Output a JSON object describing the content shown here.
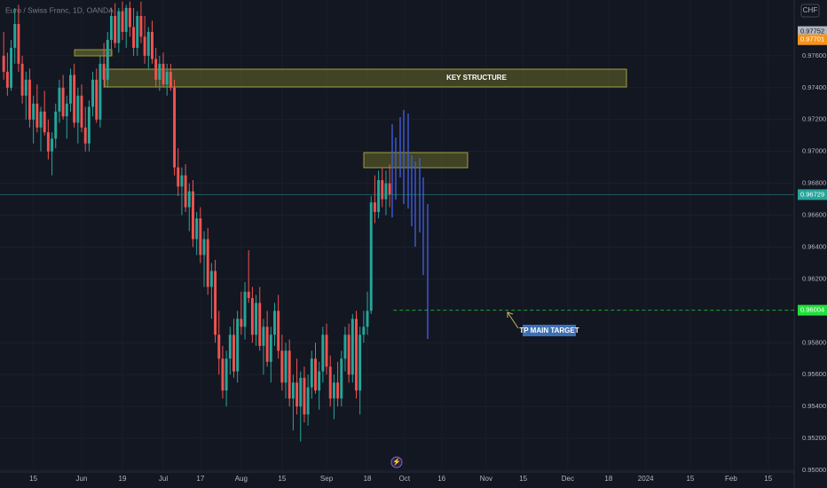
{
  "chart_data": {
    "type": "candlestick",
    "title": "Euro / Swiss Franc, 1D, OANDA",
    "currency": "CHF",
    "up_color": "#26a69a",
    "down_color": "#ef5350",
    "xlim": [
      -1,
      213
    ],
    "xticks": [
      {
        "value": 8,
        "label": "15"
      },
      {
        "value": 21,
        "label": "Jun"
      },
      {
        "value": 32,
        "label": "19"
      },
      {
        "value": 43,
        "label": "Jul"
      },
      {
        "value": 53,
        "label": "17"
      },
      {
        "value": 64,
        "label": "Aug"
      },
      {
        "value": 75,
        "label": "15"
      },
      {
        "value": 87,
        "label": "Sep"
      },
      {
        "value": 98,
        "label": "18"
      },
      {
        "value": 108,
        "label": "Oct"
      },
      {
        "value": 118,
        "label": "16"
      },
      {
        "value": 130,
        "label": "Nov"
      },
      {
        "value": 140,
        "label": "15"
      },
      {
        "value": 152,
        "label": "Dec"
      },
      {
        "value": 163,
        "label": "18"
      },
      {
        "value": 173,
        "label": "2024"
      },
      {
        "value": 185,
        "label": "15"
      },
      {
        "value": 196,
        "label": "Feb"
      },
      {
        "value": 206,
        "label": "15"
      }
    ],
    "ylim": [
      0.95,
      0.9795
    ],
    "yticks": [
      {
        "value": 0.976,
        "label": "0.97600"
      },
      {
        "value": 0.974,
        "label": "0.97400"
      },
      {
        "value": 0.972,
        "label": "0.97200"
      },
      {
        "value": 0.97,
        "label": "0.97000"
      },
      {
        "value": 0.968,
        "label": "0.96800"
      },
      {
        "value": 0.966,
        "label": "0.96600"
      },
      {
        "value": 0.964,
        "label": "0.96400"
      },
      {
        "value": 0.962,
        "label": "0.96200"
      },
      {
        "value": 0.958,
        "label": "0.95800"
      },
      {
        "value": 0.956,
        "label": "0.95600"
      },
      {
        "value": 0.954,
        "label": "0.95400"
      },
      {
        "value": 0.952,
        "label": "0.95200"
      },
      {
        "value": 0.95,
        "label": "0.95000"
      }
    ],
    "price_labels": [
      {
        "value": 0.97752,
        "label": "0.97752",
        "color": "#b2b5be"
      },
      {
        "value": 0.97701,
        "label": "0.97701",
        "color": "#f7931a"
      },
      {
        "value": 0.96729,
        "label": "0.96729",
        "color": "#26a69a"
      },
      {
        "value": 0.96004,
        "label": "0.96004",
        "color": "#22e03a"
      }
    ],
    "annotations": [
      "KEY STRUCTURE",
      "TP MAIN TARGET"
    ],
    "candles": [
      [
        0.976,
        0.9775,
        0.9745,
        0.975
      ],
      [
        0.975,
        0.9762,
        0.9735,
        0.974
      ],
      [
        0.974,
        0.977,
        0.9738,
        0.9765
      ],
      [
        0.9765,
        0.979,
        0.9755,
        0.978
      ],
      [
        0.978,
        0.9792,
        0.975,
        0.9755
      ],
      [
        0.9755,
        0.976,
        0.973,
        0.9735
      ],
      [
        0.9735,
        0.975,
        0.972,
        0.9745
      ],
      [
        0.9745,
        0.9752,
        0.9715,
        0.972
      ],
      [
        0.972,
        0.9735,
        0.9705,
        0.973
      ],
      [
        0.973,
        0.9742,
        0.9712,
        0.9715
      ],
      [
        0.9715,
        0.9728,
        0.97,
        0.9725
      ],
      [
        0.9725,
        0.9738,
        0.971,
        0.9712
      ],
      [
        0.9712,
        0.972,
        0.9695,
        0.97
      ],
      [
        0.97,
        0.9712,
        0.9685,
        0.9708
      ],
      [
        0.9708,
        0.973,
        0.9702,
        0.9725
      ],
      [
        0.9725,
        0.9745,
        0.9718,
        0.974
      ],
      [
        0.974,
        0.9748,
        0.972,
        0.9722
      ],
      [
        0.9722,
        0.9735,
        0.9708,
        0.973
      ],
      [
        0.973,
        0.9752,
        0.9725,
        0.9748
      ],
      [
        0.9748,
        0.9755,
        0.9715,
        0.9718
      ],
      [
        0.9718,
        0.974,
        0.9705,
        0.9735
      ],
      [
        0.9735,
        0.9742,
        0.9712,
        0.9715
      ],
      [
        0.9715,
        0.9728,
        0.97,
        0.9705
      ],
      [
        0.9705,
        0.9732,
        0.97,
        0.9728
      ],
      [
        0.9728,
        0.975,
        0.9722,
        0.9745
      ],
      [
        0.9745,
        0.9752,
        0.9718,
        0.972
      ],
      [
        0.972,
        0.976,
        0.9715,
        0.9755
      ],
      [
        0.9755,
        0.9768,
        0.974,
        0.9745
      ],
      [
        0.9745,
        0.9775,
        0.974,
        0.977
      ],
      [
        0.977,
        0.979,
        0.976,
        0.9785
      ],
      [
        0.9785,
        0.9793,
        0.9765,
        0.9768
      ],
      [
        0.9768,
        0.979,
        0.9762,
        0.9788
      ],
      [
        0.9788,
        0.9794,
        0.977,
        0.9775
      ],
      [
        0.9775,
        0.9792,
        0.9765,
        0.979
      ],
      [
        0.979,
        0.9794,
        0.9772,
        0.9778
      ],
      [
        0.9778,
        0.979,
        0.976,
        0.9765
      ],
      [
        0.9765,
        0.9788,
        0.976,
        0.9785
      ],
      [
        0.9785,
        0.9794,
        0.9768,
        0.9772
      ],
      [
        0.9772,
        0.9785,
        0.9755,
        0.976
      ],
      [
        0.976,
        0.9778,
        0.9752,
        0.9775
      ],
      [
        0.9775,
        0.9782,
        0.9755,
        0.9758
      ],
      [
        0.9758,
        0.9765,
        0.974,
        0.9745
      ],
      [
        0.9745,
        0.976,
        0.9738,
        0.9755
      ],
      [
        0.9755,
        0.9762,
        0.974,
        0.9742
      ],
      [
        0.9742,
        0.9755,
        0.9735,
        0.975
      ],
      [
        0.975,
        0.9755,
        0.9738,
        0.974
      ],
      [
        0.974,
        0.9745,
        0.9685,
        0.969
      ],
      [
        0.969,
        0.9702,
        0.9672,
        0.9678
      ],
      [
        0.9678,
        0.969,
        0.966,
        0.9685
      ],
      [
        0.9685,
        0.9692,
        0.9662,
        0.9665
      ],
      [
        0.9665,
        0.968,
        0.965,
        0.9675
      ],
      [
        0.9675,
        0.9682,
        0.964,
        0.9645
      ],
      [
        0.9645,
        0.9662,
        0.9635,
        0.9658
      ],
      [
        0.9658,
        0.9665,
        0.963,
        0.9635
      ],
      [
        0.9635,
        0.965,
        0.9615,
        0.9645
      ],
      [
        0.9645,
        0.9652,
        0.961,
        0.9615
      ],
      [
        0.9615,
        0.963,
        0.9595,
        0.9625
      ],
      [
        0.9625,
        0.9632,
        0.958,
        0.9585
      ],
      [
        0.9585,
        0.96,
        0.956,
        0.957
      ],
      [
        0.957,
        0.9578,
        0.9545,
        0.955
      ],
      [
        0.955,
        0.9575,
        0.954,
        0.957
      ],
      [
        0.957,
        0.959,
        0.956,
        0.9585
      ],
      [
        0.9585,
        0.9595,
        0.9558,
        0.9562
      ],
      [
        0.9562,
        0.96,
        0.9555,
        0.9595
      ],
      [
        0.9595,
        0.9612,
        0.9585,
        0.959
      ],
      [
        0.959,
        0.9618,
        0.9582,
        0.9612
      ],
      [
        0.9612,
        0.9638,
        0.9605,
        0.9608
      ],
      [
        0.9608,
        0.9615,
        0.958,
        0.9585
      ],
      [
        0.9585,
        0.961,
        0.9578,
        0.9605
      ],
      [
        0.9605,
        0.9615,
        0.9575,
        0.9578
      ],
      [
        0.9578,
        0.9595,
        0.956,
        0.959
      ],
      [
        0.959,
        0.96,
        0.9565,
        0.9568
      ],
      [
        0.9568,
        0.959,
        0.9555,
        0.9585
      ],
      [
        0.9585,
        0.9605,
        0.9578,
        0.96
      ],
      [
        0.96,
        0.961,
        0.957,
        0.9575
      ],
      [
        0.9575,
        0.9585,
        0.955,
        0.9555
      ],
      [
        0.9555,
        0.958,
        0.9545,
        0.9575
      ],
      [
        0.9575,
        0.9582,
        0.954,
        0.9545
      ],
      [
        0.9545,
        0.956,
        0.9525,
        0.9555
      ],
      [
        0.9555,
        0.957,
        0.9535,
        0.954
      ],
      [
        0.954,
        0.9562,
        0.9518,
        0.9558
      ],
      [
        0.9558,
        0.9565,
        0.953,
        0.9535
      ],
      [
        0.9535,
        0.956,
        0.9528,
        0.9552
      ],
      [
        0.9552,
        0.9575,
        0.9545,
        0.957
      ],
      [
        0.957,
        0.958,
        0.9548,
        0.955
      ],
      [
        0.955,
        0.9568,
        0.9538,
        0.9562
      ],
      [
        0.9562,
        0.959,
        0.9555,
        0.9585
      ],
      [
        0.9585,
        0.9592,
        0.956,
        0.9565
      ],
      [
        0.9565,
        0.9572,
        0.954,
        0.9545
      ],
      [
        0.9545,
        0.956,
        0.9532,
        0.9555
      ],
      [
        0.9555,
        0.9568,
        0.954,
        0.9545
      ],
      [
        0.9545,
        0.9575,
        0.954,
        0.957
      ],
      [
        0.957,
        0.959,
        0.9562,
        0.9585
      ],
      [
        0.9585,
        0.9592,
        0.9555,
        0.956
      ],
      [
        0.956,
        0.9598,
        0.9555,
        0.9595
      ],
      [
        0.9595,
        0.96,
        0.9545,
        0.955
      ],
      [
        0.955,
        0.959,
        0.9535,
        0.9585
      ],
      [
        0.9585,
        0.96,
        0.958,
        0.959
      ],
      [
        0.959,
        0.9612,
        0.9585,
        0.96
      ],
      [
        0.96,
        0.9672,
        0.9598,
        0.9668
      ],
      [
        0.9668,
        0.9685,
        0.9655,
        0.9662
      ],
      [
        0.9662,
        0.9688,
        0.9658,
        0.9682
      ],
      [
        0.9682,
        0.969,
        0.9665,
        0.967
      ],
      [
        0.967,
        0.9688,
        0.966,
        0.968
      ],
      [
        0.968,
        0.9692,
        0.9665,
        0.9673
      ]
    ]
  }
}
